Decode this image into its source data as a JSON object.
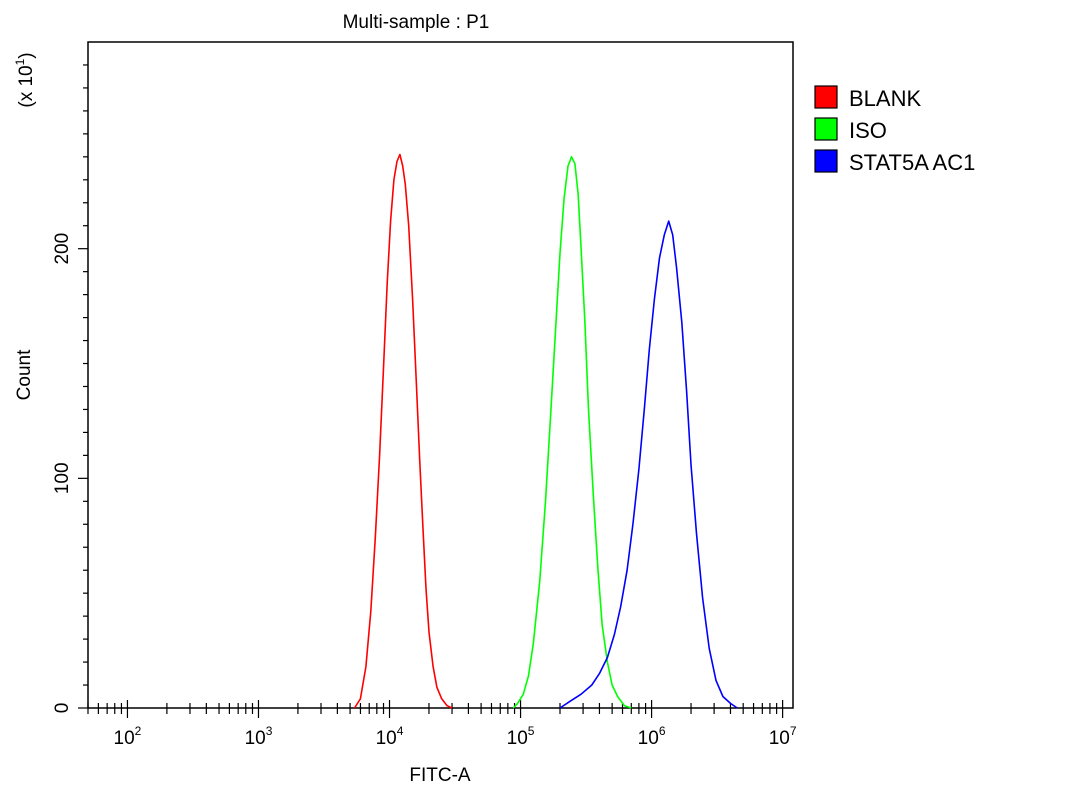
{
  "chart_data": {
    "type": "line",
    "title": "Multi-sample : P1",
    "xlabel": "FITC-A",
    "ylabel": "Count",
    "y_multiplier_label": "(x 10",
    "y_multiplier_exp": "1",
    "y_multiplier_close": ")",
    "x_scale": "log",
    "xlim": [
      50,
      12000000
    ],
    "ylim": [
      0,
      290
    ],
    "x_ticks": [
      {
        "value": 100,
        "base": "10",
        "exp": "2"
      },
      {
        "value": 1000,
        "base": "10",
        "exp": "3"
      },
      {
        "value": 10000,
        "base": "10",
        "exp": "4"
      },
      {
        "value": 100000,
        "base": "10",
        "exp": "5"
      },
      {
        "value": 1000000,
        "base": "10",
        "exp": "6"
      },
      {
        "value": 10000000,
        "base": "10",
        "exp": "7"
      }
    ],
    "y_ticks": [
      {
        "value": 0,
        "label": "0"
      },
      {
        "value": 100,
        "label": "100"
      },
      {
        "value": 200,
        "label": "200"
      }
    ],
    "grid": false,
    "legend_position": "right-top",
    "series": [
      {
        "name": "BLANK",
        "color": "#ff0000",
        "x": [
          5400,
          6000,
          6600,
          7200,
          7800,
          8400,
          9000,
          9600,
          10200,
          10800,
          11400,
          12000,
          12600,
          13200,
          14000,
          15000,
          16000,
          17000,
          18000,
          19000,
          20000,
          21500,
          23000,
          25000,
          27500,
          30000
        ],
        "y": [
          0,
          4,
          18,
          42,
          75,
          110,
          148,
          185,
          212,
          230,
          238,
          241,
          236,
          228,
          210,
          178,
          142,
          108,
          78,
          52,
          33,
          18,
          9,
          4,
          1,
          0
        ]
      },
      {
        "name": "ISO",
        "color": "#00ff00",
        "x": [
          88000,
          95000,
          105000,
          115000,
          125000,
          140000,
          155000,
          170000,
          185000,
          200000,
          215000,
          230000,
          245000,
          260000,
          275000,
          290000,
          310000,
          330000,
          360000,
          390000,
          420000,
          460000,
          500000,
          550000,
          620000,
          700000
        ],
        "y": [
          0,
          2,
          6,
          14,
          28,
          55,
          90,
          128,
          165,
          198,
          222,
          236,
          240,
          237,
          224,
          200,
          168,
          130,
          92,
          60,
          36,
          20,
          10,
          5,
          1,
          0
        ]
      },
      {
        "name": "STAT5A AC1",
        "color": "#0000ff",
        "x": [
          200000,
          240000,
          290000,
          350000,
          400000,
          460000,
          520000,
          580000,
          650000,
          720000,
          800000,
          880000,
          960000,
          1050000,
          1150000,
          1250000,
          1350000,
          1450000,
          1550000,
          1700000,
          1850000,
          2000000,
          2200000,
          2450000,
          2750000,
          3100000,
          3500000,
          4000000,
          4500000
        ],
        "y": [
          0,
          3,
          6,
          10,
          15,
          22,
          32,
          44,
          60,
          80,
          104,
          130,
          156,
          178,
          196,
          206,
          212,
          206,
          192,
          168,
          138,
          106,
          76,
          48,
          26,
          12,
          5,
          2,
          0
        ]
      }
    ]
  }
}
